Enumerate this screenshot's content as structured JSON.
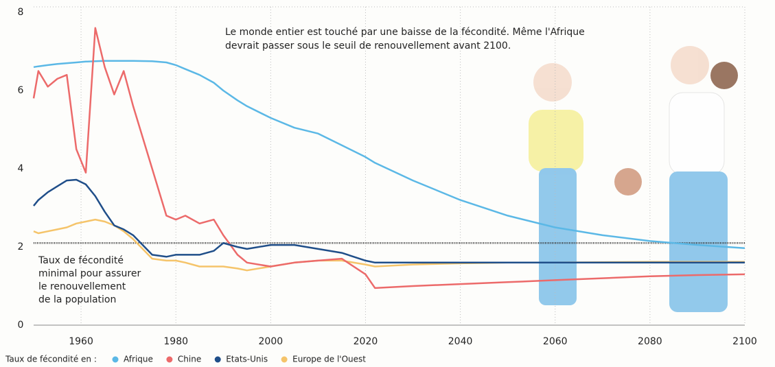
{
  "chart_data": {
    "type": "line",
    "title": [
      "Le monde entier est touché par une baisse de la fécondité.  Même l'Afrique",
      "devrait passer sous le seuil de renouvellement avant 2100."
    ],
    "legend_title": "Taux de fécondité en :",
    "legend": "bottom",
    "grid": true,
    "x": [
      1950,
      1951,
      1953,
      1955,
      1957,
      1959,
      1961,
      1963,
      1965,
      1967,
      1969,
      1971,
      1975,
      1978,
      1980,
      1982,
      1985,
      1988,
      1990,
      1993,
      1995,
      2000,
      2005,
      2010,
      2015,
      2020,
      2022,
      2030,
      2040,
      2050,
      2060,
      2070,
      2080,
      2090,
      2100
    ],
    "series": [
      {
        "name": "Afrique",
        "color": "#5bb8e6",
        "values": [
          6.6,
          6.62,
          6.65,
          6.68,
          6.7,
          6.72,
          6.74,
          6.75,
          6.76,
          6.76,
          6.76,
          6.76,
          6.75,
          6.72,
          6.65,
          6.55,
          6.4,
          6.2,
          6.0,
          5.75,
          5.6,
          5.3,
          5.05,
          4.9,
          4.6,
          4.3,
          4.15,
          3.7,
          3.2,
          2.8,
          2.5,
          2.3,
          2.15,
          2.05,
          1.97
        ]
      },
      {
        "name": "Chine",
        "color": "#ec6a6a",
        "values": [
          5.8,
          6.5,
          6.1,
          6.3,
          6.4,
          4.5,
          3.9,
          7.6,
          6.6,
          5.9,
          6.5,
          5.6,
          4.0,
          2.8,
          2.7,
          2.8,
          2.6,
          2.7,
          2.3,
          1.8,
          1.6,
          1.5,
          1.6,
          1.65,
          1.7,
          1.3,
          0.95,
          1.0,
          1.05,
          1.1,
          1.15,
          1.2,
          1.25,
          1.28,
          1.3
        ]
      },
      {
        "name": "Etats-Unis",
        "color": "#1f4e89",
        "values": [
          3.05,
          3.2,
          3.4,
          3.55,
          3.7,
          3.72,
          3.6,
          3.3,
          2.9,
          2.55,
          2.45,
          2.3,
          1.8,
          1.75,
          1.8,
          1.8,
          1.8,
          1.9,
          2.1,
          2.0,
          1.95,
          2.05,
          2.05,
          1.95,
          1.85,
          1.65,
          1.6,
          1.6,
          1.6,
          1.6,
          1.6,
          1.6,
          1.6,
          1.6,
          1.6
        ]
      },
      {
        "name": "Europe de l'Ouest",
        "color": "#f5c46a",
        "values": [
          2.4,
          2.35,
          2.4,
          2.45,
          2.5,
          2.6,
          2.65,
          2.7,
          2.65,
          2.55,
          2.4,
          2.2,
          1.7,
          1.65,
          1.65,
          1.6,
          1.5,
          1.5,
          1.5,
          1.45,
          1.4,
          1.5,
          1.6,
          1.65,
          1.65,
          1.55,
          1.5,
          1.55,
          1.58,
          1.6,
          1.6,
          1.61,
          1.62,
          1.62,
          1.62
        ]
      }
    ],
    "reference_line": {
      "value": 2.1,
      "label": [
        "Taux de fécondité",
        "minimal pour assurer",
        "le renouvellement",
        "de la population"
      ]
    },
    "xlim": [
      1950,
      2100
    ],
    "xticks": [
      1960,
      1980,
      2000,
      2020,
      2040,
      2060,
      2080,
      2100
    ],
    "ylim": [
      0,
      8
    ],
    "yticks": [
      0,
      2,
      4,
      6,
      8
    ]
  }
}
